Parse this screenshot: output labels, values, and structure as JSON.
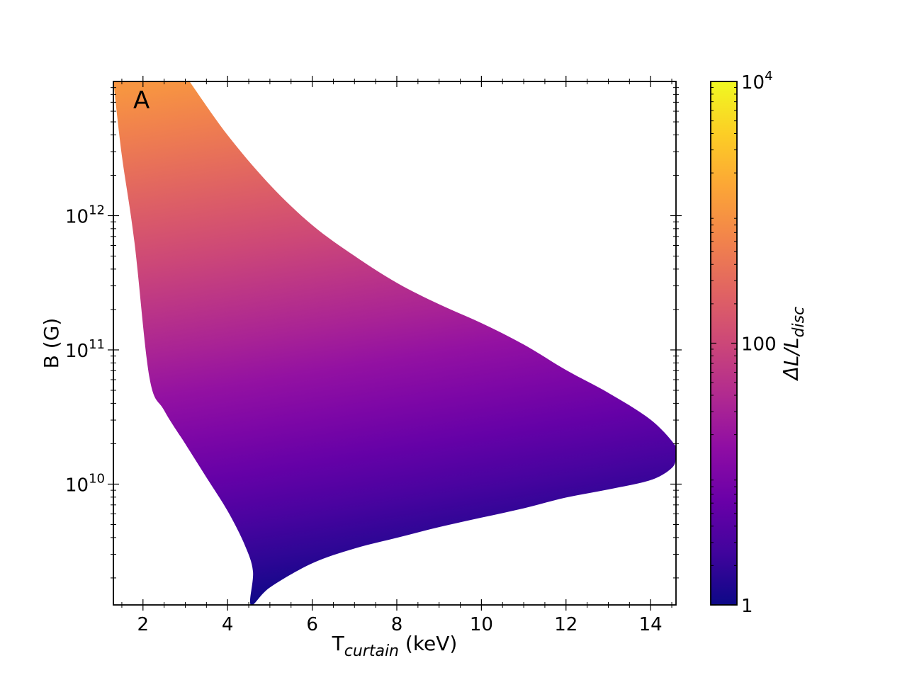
{
  "chart_data": {
    "type": "heatmap",
    "panel_label": "A",
    "xlabel": {
      "base": "T",
      "subscript": "curtain",
      "suffix": " (keV)"
    },
    "ylabel": "B (G)",
    "xlim": [
      1.3,
      14.6
    ],
    "ylim_log10": [
      9.1,
      13.0
    ],
    "x_scale": "linear",
    "y_scale": "log",
    "x_ticks": [
      2,
      4,
      6,
      8,
      10,
      12,
      14
    ],
    "x_tick_labels": [
      "2",
      "4",
      "6",
      "8",
      "10",
      "12",
      "14"
    ],
    "y_ticks_log10": [
      10,
      11,
      12
    ],
    "y_tick_labels": [
      {
        "base": "10",
        "exp": "10"
      },
      {
        "base": "10",
        "exp": "11"
      },
      {
        "base": "10",
        "exp": "12"
      }
    ],
    "colorbar": {
      "label": {
        "prefix": "ΔL/L",
        "subscript": "disc"
      },
      "scale": "log",
      "range_log10": [
        0,
        4
      ],
      "ticks_log10": [
        0,
        2,
        4
      ],
      "tick_labels": [
        {
          "base": "1",
          "exp": ""
        },
        {
          "base": "100",
          "exp": ""
        },
        {
          "base": "10",
          "exp": "4"
        }
      ],
      "colormap": "plasma"
    },
    "region": {
      "left_edge": [
        {
          "T": 1.3,
          "logB": 13.0
        },
        {
          "T": 1.5,
          "logB": 12.45
        },
        {
          "T": 1.8,
          "logB": 11.8
        },
        {
          "T": 2.15,
          "logB": 10.8
        },
        {
          "T": 2.5,
          "logB": 10.55
        },
        {
          "T": 3.0,
          "logB": 10.3
        },
        {
          "T": 3.5,
          "logB": 10.05
        },
        {
          "T": 4.0,
          "logB": 9.8
        },
        {
          "T": 4.4,
          "logB": 9.55
        },
        {
          "T": 4.6,
          "logB": 9.35
        },
        {
          "T": 4.55,
          "logB": 9.1
        }
      ],
      "lower_edge": [
        {
          "T": 4.55,
          "logB": 9.1
        },
        {
          "T": 5.0,
          "logB": 9.23
        },
        {
          "T": 6.0,
          "logB": 9.41
        },
        {
          "T": 7.0,
          "logB": 9.52
        },
        {
          "T": 8.0,
          "logB": 9.6
        },
        {
          "T": 9.0,
          "logB": 9.68
        },
        {
          "T": 10.0,
          "logB": 9.75
        },
        {
          "T": 11.0,
          "logB": 9.82
        },
        {
          "T": 12.0,
          "logB": 9.9
        },
        {
          "T": 13.0,
          "logB": 9.96
        },
        {
          "T": 14.0,
          "logB": 10.03
        },
        {
          "T": 14.5,
          "logB": 10.12
        },
        {
          "T": 14.6,
          "logB": 10.2
        }
      ],
      "upper_edge": [
        {
          "T": 3.1,
          "logB": 13.0
        },
        {
          "T": 4.0,
          "logB": 12.6
        },
        {
          "T": 5.0,
          "logB": 12.23
        },
        {
          "T": 6.0,
          "logB": 11.93
        },
        {
          "T": 7.0,
          "logB": 11.7
        },
        {
          "T": 8.0,
          "logB": 11.5
        },
        {
          "T": 9.0,
          "logB": 11.34
        },
        {
          "T": 10.0,
          "logB": 11.2
        },
        {
          "T": 11.0,
          "logB": 11.04
        },
        {
          "T": 12.0,
          "logB": 10.85
        },
        {
          "T": 13.0,
          "logB": 10.68
        },
        {
          "T": 14.0,
          "logB": 10.48
        },
        {
          "T": 14.6,
          "logB": 10.28
        }
      ],
      "color_gradient": {
        "low_value_log10": 0.0,
        "high_value_log10": 3.0,
        "low_at": {
          "T": 4.8,
          "logB": 9.1
        },
        "high_at": {
          "T": 2.8,
          "logB": 13.0
        }
      }
    }
  }
}
